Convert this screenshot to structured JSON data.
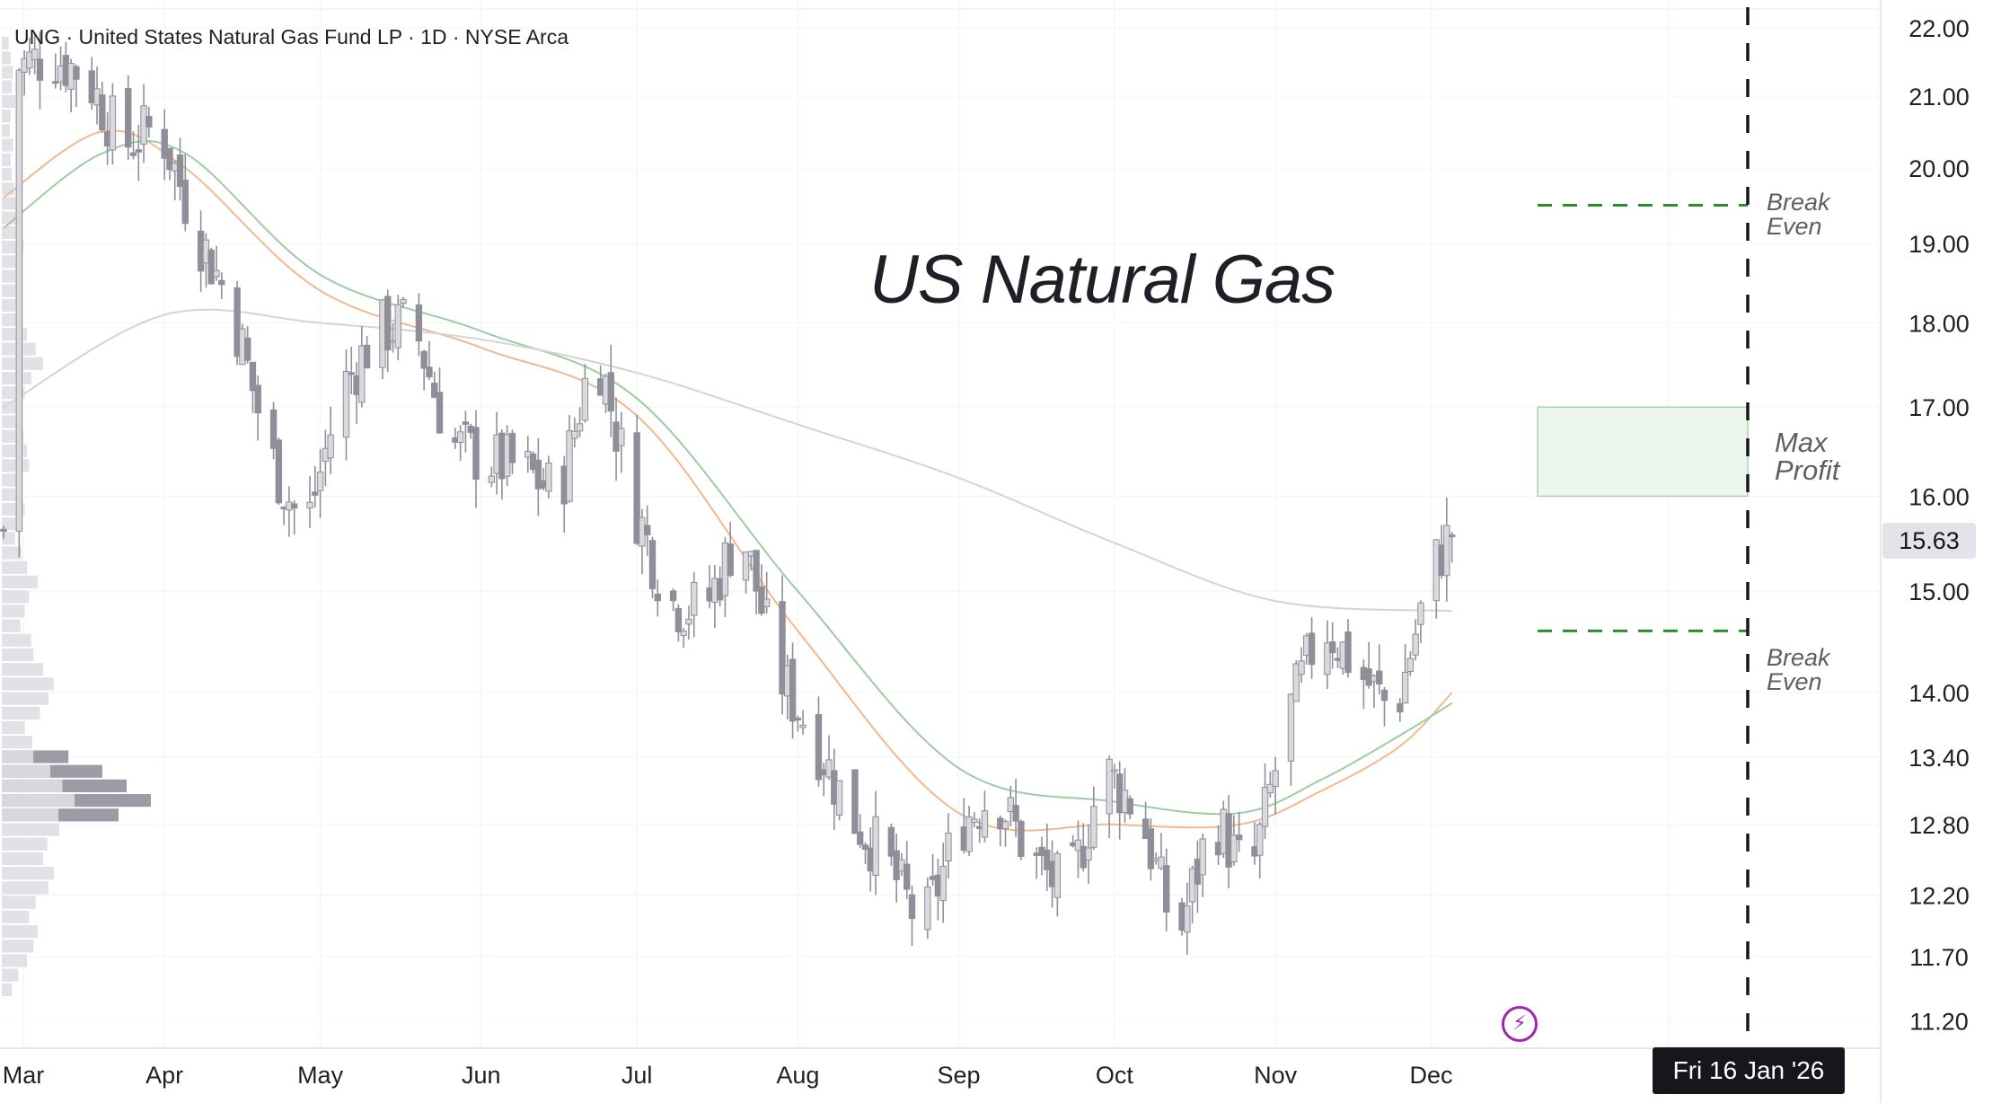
{
  "header": {
    "symbol_line": "UNG · United States Natural Gas Fund LP · 1D · NYSE Arca",
    "main_title": "US Natural Gas"
  },
  "annotations": {
    "break_even_upper": [
      "Break",
      "Even"
    ],
    "break_even_lower": [
      "Break",
      "Even"
    ],
    "max_profit": [
      "Max",
      "Profit"
    ]
  },
  "current_price_label": "15.63",
  "cursor_date_label": "Fri 16 Jan '26",
  "icons": {
    "event_icon": "lightning-bolt-icon"
  },
  "colors": {
    "candle": "#8e8f99",
    "ma_fast": "#f3b98e",
    "ma_mid": "#9dcca2",
    "ma_slow": "#d4d4d4",
    "break_even_line": "#2e8b2e",
    "max_profit_fill": "#ecf6ec",
    "max_profit_border": "#a6d7a6",
    "expiry_line": "#16171c",
    "event_icon": "#9c27b0"
  },
  "chart_data": {
    "type": "candlestick",
    "title": "US Natural Gas",
    "instrument": "UNG · United States Natural Gas Fund LP · 1D · NYSE Arca",
    "x_axis_labels": [
      "Mar",
      "Apr",
      "May",
      "Jun",
      "Jul",
      "Aug",
      "Sep",
      "Oct",
      "Nov",
      "Dec"
    ],
    "y_axis_labels": [
      "22.00",
      "21.00",
      "20.00",
      "19.00",
      "18.00",
      "17.00",
      "16.00",
      "15.00",
      "14.00",
      "13.40",
      "12.80",
      "12.20",
      "11.70",
      "11.20"
    ],
    "y_scale": "log",
    "ylim": [
      11.2,
      22.4
    ],
    "last_price": 15.63,
    "date_start": "2025-03-01",
    "date_end": "2026-01-25",
    "expiry_date": "2026-01-16",
    "candles_close_path": [
      [
        "2025-03-03",
        21.4
      ],
      [
        "2025-03-10",
        21.6
      ],
      [
        "2025-03-17",
        21.3
      ],
      [
        "2025-03-24",
        20.3
      ],
      [
        "2025-03-31",
        20.6
      ],
      [
        "2025-04-07",
        19.2
      ],
      [
        "2025-04-14",
        18.2
      ],
      [
        "2025-04-21",
        16.5
      ],
      [
        "2025-04-28",
        15.6
      ],
      [
        "2025-05-05",
        17.2
      ],
      [
        "2025-05-12",
        17.9
      ],
      [
        "2025-05-19",
        18.0
      ],
      [
        "2025-05-26",
        16.6
      ],
      [
        "2025-06-02",
        16.4
      ],
      [
        "2025-06-09",
        16.3
      ],
      [
        "2025-06-16",
        16.0
      ],
      [
        "2025-06-23",
        17.8
      ],
      [
        "2025-06-30",
        16.0
      ],
      [
        "2025-07-07",
        14.9
      ],
      [
        "2025-07-14",
        14.8
      ],
      [
        "2025-07-21",
        15.7
      ],
      [
        "2025-07-28",
        14.2
      ],
      [
        "2025-08-04",
        13.6
      ],
      [
        "2025-08-11",
        12.9
      ],
      [
        "2025-08-18",
        12.5
      ],
      [
        "2025-08-25",
        11.9
      ],
      [
        "2025-09-01",
        12.8
      ],
      [
        "2025-09-08",
        13.1
      ],
      [
        "2025-09-15",
        12.5
      ],
      [
        "2025-09-22",
        12.2
      ],
      [
        "2025-09-29",
        13.3
      ],
      [
        "2025-10-06",
        12.9
      ],
      [
        "2025-10-13",
        11.8
      ],
      [
        "2025-10-20",
        12.9
      ],
      [
        "2025-10-27",
        12.3
      ],
      [
        "2025-11-03",
        13.7
      ],
      [
        "2025-11-10",
        14.7
      ],
      [
        "2025-11-17",
        14.2
      ],
      [
        "2025-11-24",
        13.8
      ],
      [
        "2025-12-01",
        15.2
      ],
      [
        "2025-12-05",
        15.63
      ]
    ],
    "moving_averages": [
      {
        "name": "",
        "color": "#f3b98e",
        "points": [
          [
            "2025-03-01",
            19.6
          ],
          [
            "2025-03-20",
            20.5
          ],
          [
            "2025-04-05",
            20.0
          ],
          [
            "2025-05-01",
            18.4
          ],
          [
            "2025-06-01",
            17.7
          ],
          [
            "2025-07-01",
            16.9
          ],
          [
            "2025-08-01",
            14.6
          ],
          [
            "2025-09-01",
            12.9
          ],
          [
            "2025-10-01",
            12.8
          ],
          [
            "2025-10-25",
            12.8
          ],
          [
            "2025-11-10",
            13.1
          ],
          [
            "2025-11-25",
            13.5
          ],
          [
            "2025-12-05",
            14.0
          ]
        ]
      },
      {
        "name": "",
        "color": "#9dcca2",
        "points": [
          [
            "2025-03-01",
            19.2
          ],
          [
            "2025-03-20",
            20.2
          ],
          [
            "2025-04-05",
            20.2
          ],
          [
            "2025-05-01",
            18.6
          ],
          [
            "2025-06-01",
            17.9
          ],
          [
            "2025-07-01",
            17.1
          ],
          [
            "2025-08-01",
            15.0
          ],
          [
            "2025-09-01",
            13.3
          ],
          [
            "2025-10-01",
            13.0
          ],
          [
            "2025-10-25",
            12.9
          ],
          [
            "2025-11-10",
            13.2
          ],
          [
            "2025-11-25",
            13.6
          ],
          [
            "2025-12-05",
            13.9
          ]
        ]
      },
      {
        "name": "",
        "color": "#d4d4d4",
        "points": [
          [
            "2025-03-01",
            17.0
          ],
          [
            "2025-04-01",
            18.1
          ],
          [
            "2025-05-01",
            18.0
          ],
          [
            "2025-06-01",
            17.8
          ],
          [
            "2025-07-01",
            17.4
          ],
          [
            "2025-08-01",
            16.8
          ],
          [
            "2025-09-01",
            16.2
          ],
          [
            "2025-10-01",
            15.5
          ],
          [
            "2025-11-01",
            14.9
          ],
          [
            "2025-12-05",
            14.8
          ]
        ]
      }
    ],
    "strategy_levels": {
      "break_even_upper": 19.5,
      "break_even_lower": 14.6,
      "max_profit_range": [
        16.0,
        17.0
      ],
      "zone_start_date": "2025-12-07"
    },
    "volume_profile": "horizontal-bars-left",
    "grid": true
  }
}
